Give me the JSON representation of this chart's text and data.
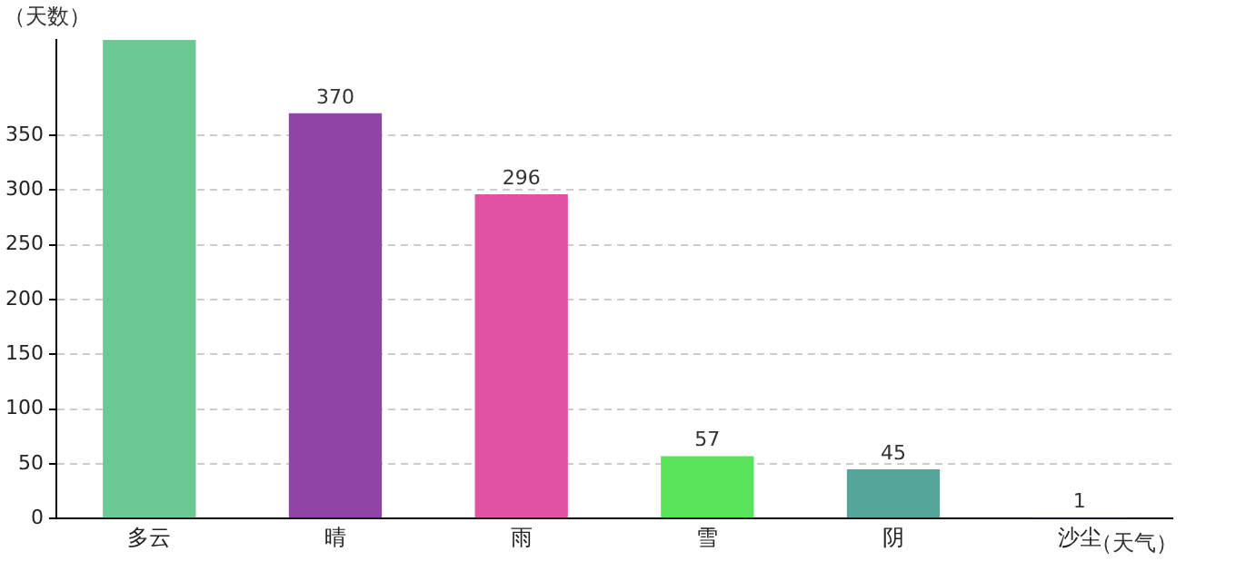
{
  "chart_data": {
    "type": "bar",
    "xlabel": "（天气）",
    "ylabel": "（天数）",
    "categories": [
      "多云",
      "晴",
      "雨",
      "雪",
      "阴",
      "沙尘"
    ],
    "values": [
      437,
      370,
      296,
      57,
      45,
      1
    ],
    "colors": [
      "#6cc994",
      "#8f44a6",
      "#e052a2",
      "#59e35b",
      "#55a699",
      "#3b3bbd"
    ],
    "value_labels": [
      null,
      "370",
      "296",
      "57",
      "45",
      "1"
    ],
    "ylim": [
      0,
      437
    ],
    "yticks": [
      0,
      50,
      100,
      150,
      200,
      250,
      300,
      350
    ],
    "grid": "y",
    "legend": false
  }
}
